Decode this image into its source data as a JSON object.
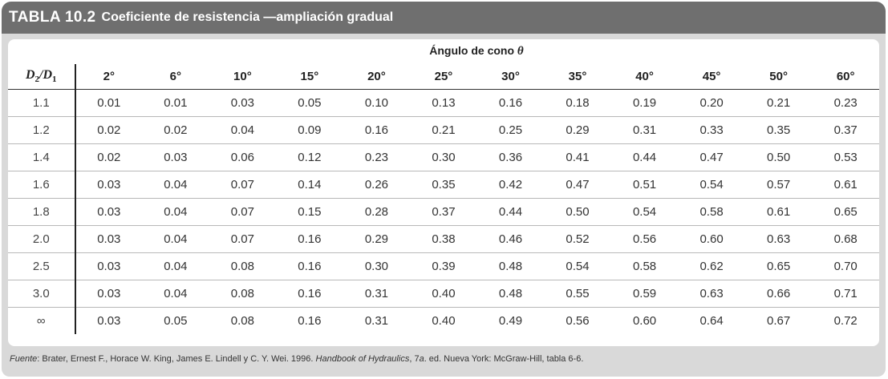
{
  "title": {
    "number": "TABLA 10.2",
    "text": "Coeficiente de resistencia —ampliación gradual"
  },
  "group_header": "Ángulo de cono",
  "group_symbol": "θ",
  "stub_header": {
    "d2": "D",
    "d2_sub": "2",
    "slash": "/",
    "d1": "D",
    "d1_sub": "1"
  },
  "columns": [
    "2°",
    "6°",
    "10°",
    "15°",
    "20°",
    "25°",
    "30°",
    "35°",
    "40°",
    "45°",
    "50°",
    "60°"
  ],
  "rows": [
    {
      "ratio": "1.1",
      "values": [
        "0.01",
        "0.01",
        "0.03",
        "0.05",
        "0.10",
        "0.13",
        "0.16",
        "0.18",
        "0.19",
        "0.20",
        "0.21",
        "0.23"
      ]
    },
    {
      "ratio": "1.2",
      "values": [
        "0.02",
        "0.02",
        "0.04",
        "0.09",
        "0.16",
        "0.21",
        "0.25",
        "0.29",
        "0.31",
        "0.33",
        "0.35",
        "0.37"
      ]
    },
    {
      "ratio": "1.4",
      "values": [
        "0.02",
        "0.03",
        "0.06",
        "0.12",
        "0.23",
        "0.30",
        "0.36",
        "0.41",
        "0.44",
        "0.47",
        "0.50",
        "0.53"
      ]
    },
    {
      "ratio": "1.6",
      "values": [
        "0.03",
        "0.04",
        "0.07",
        "0.14",
        "0.26",
        "0.35",
        "0.42",
        "0.47",
        "0.51",
        "0.54",
        "0.57",
        "0.61"
      ]
    },
    {
      "ratio": "1.8",
      "values": [
        "0.03",
        "0.04",
        "0.07",
        "0.15",
        "0.28",
        "0.37",
        "0.44",
        "0.50",
        "0.54",
        "0.58",
        "0.61",
        "0.65"
      ]
    },
    {
      "ratio": "2.0",
      "values": [
        "0.03",
        "0.04",
        "0.07",
        "0.16",
        "0.29",
        "0.38",
        "0.46",
        "0.52",
        "0.56",
        "0.60",
        "0.63",
        "0.68"
      ]
    },
    {
      "ratio": "2.5",
      "values": [
        "0.03",
        "0.04",
        "0.08",
        "0.16",
        "0.30",
        "0.39",
        "0.48",
        "0.54",
        "0.58",
        "0.62",
        "0.65",
        "0.70"
      ]
    },
    {
      "ratio": "3.0",
      "values": [
        "0.03",
        "0.04",
        "0.08",
        "0.16",
        "0.31",
        "0.40",
        "0.48",
        "0.55",
        "0.59",
        "0.63",
        "0.66",
        "0.71"
      ]
    },
    {
      "ratio": "∞",
      "values": [
        "0.03",
        "0.05",
        "0.08",
        "0.16",
        "0.31",
        "0.40",
        "0.49",
        "0.56",
        "0.60",
        "0.64",
        "0.67",
        "0.72"
      ]
    }
  ],
  "source": {
    "label": "Fuente",
    "part1": ": Brater, Ernest F., Horace W. King, James E. Lindell y C. Y. Wei. 1996. ",
    "book": "Handbook of Hydraulics",
    "part2": ", 7",
    "edition_sup": "a",
    "part3": ". ed. Nueva York: McGraw-Hill, tabla 6-6."
  }
}
